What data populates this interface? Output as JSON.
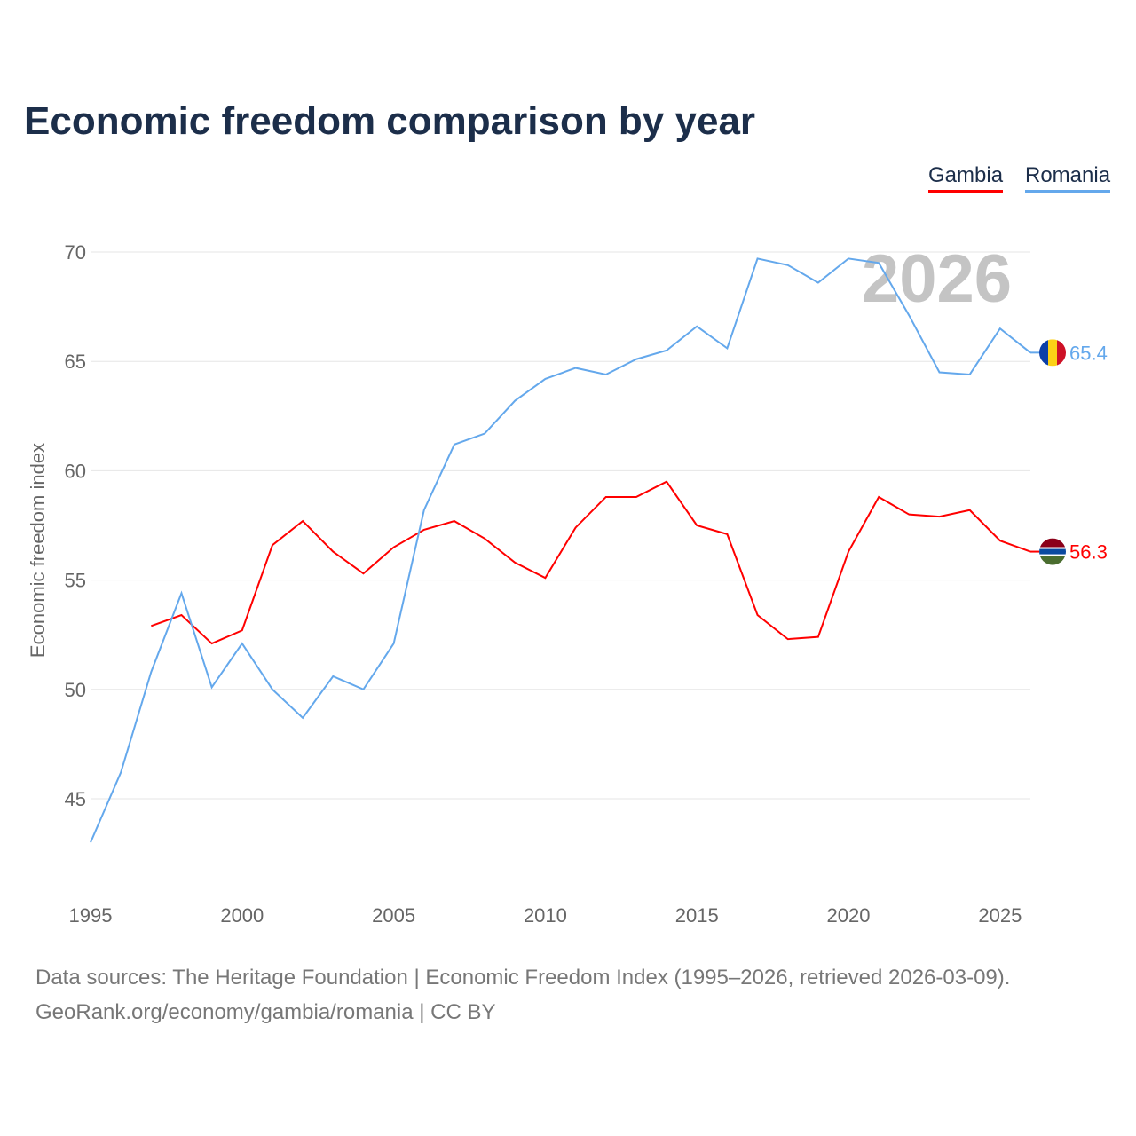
{
  "chart_data": {
    "type": "line",
    "title": "Economic freedom comparison by year",
    "xlabel": "",
    "ylabel": "Economic freedom index",
    "xlim": [
      1995,
      2026
    ],
    "ylim": [
      45,
      70
    ],
    "x_ticks": [
      "1995",
      "2000",
      "2005",
      "2010",
      "2015",
      "2020",
      "2025"
    ],
    "y_ticks": [
      "45",
      "50",
      "55",
      "60",
      "65",
      "70"
    ],
    "grid": true,
    "legend_position": "top-right",
    "year_watermark": "2026",
    "series": [
      {
        "name": "Gambia",
        "color": "#ff0000",
        "end_label": "56.3",
        "flag": "gambia-flag",
        "x": [
          1997,
          1998,
          1999,
          2000,
          2001,
          2002,
          2003,
          2004,
          2005,
          2006,
          2007,
          2008,
          2009,
          2010,
          2011,
          2012,
          2013,
          2014,
          2015,
          2016,
          2017,
          2018,
          2019,
          2020,
          2021,
          2022,
          2023,
          2024,
          2025,
          2026
        ],
        "values": [
          52.9,
          53.4,
          52.1,
          52.7,
          56.6,
          57.7,
          56.3,
          55.3,
          56.5,
          57.3,
          57.7,
          56.9,
          55.8,
          55.1,
          57.4,
          58.8,
          58.8,
          59.5,
          57.5,
          57.1,
          53.4,
          52.3,
          52.4,
          56.3,
          58.8,
          58.0,
          57.9,
          58.2,
          56.8,
          56.3
        ]
      },
      {
        "name": "Romania",
        "color": "#64a8ec",
        "end_label": "65.4",
        "flag": "romania-flag",
        "x": [
          1995,
          1996,
          1997,
          1998,
          1999,
          2000,
          2001,
          2002,
          2003,
          2004,
          2005,
          2006,
          2007,
          2008,
          2009,
          2010,
          2011,
          2012,
          2013,
          2014,
          2015,
          2016,
          2017,
          2018,
          2019,
          2020,
          2021,
          2022,
          2023,
          2024,
          2025,
          2026
        ],
        "values": [
          43.0,
          46.2,
          50.8,
          54.4,
          50.1,
          52.1,
          50.0,
          48.7,
          50.6,
          50.0,
          52.1,
          58.2,
          61.2,
          61.7,
          63.2,
          64.2,
          64.7,
          64.4,
          65.1,
          65.5,
          66.6,
          65.6,
          69.7,
          69.4,
          68.6,
          69.7,
          69.5,
          67.1,
          64.5,
          64.4,
          66.5,
          65.4
        ]
      }
    ]
  },
  "footer": {
    "source": "Data sources: The Heritage Foundation | Economic Freedom Index (1995–2026, retrieved 2026-03-09).",
    "credit": "GeoRank.org/economy/gambia/romania | CC BY"
  }
}
